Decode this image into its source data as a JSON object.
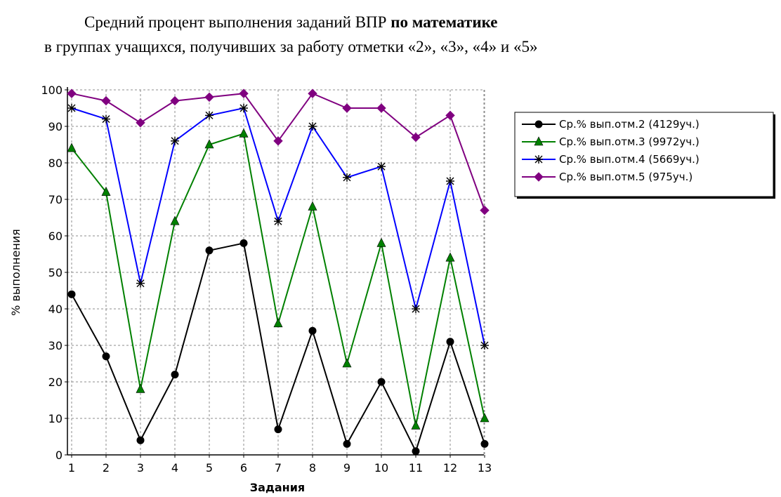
{
  "heading": {
    "line1_prefix": "Средний процент выполнения заданий ВПР ",
    "line1_bold": "по математике",
    "line2": "в группах учащихся, получивших за работу отметки «2», «3», «4» и «5»"
  },
  "chart_data": {
    "type": "line",
    "title": "Средний процент выполнения заданий ВПР по математике в группах учащихся, получивших за работу отметки «2», «3», «4» и «5»",
    "xlabel": "Задания",
    "ylabel": "% выполнения",
    "x": [
      1,
      2,
      3,
      4,
      5,
      6,
      7,
      8,
      9,
      10,
      11,
      12,
      13
    ],
    "ylim": [
      0,
      100
    ],
    "yticks": [
      0,
      10,
      20,
      30,
      40,
      50,
      60,
      70,
      80,
      90,
      100
    ],
    "grid": true,
    "legend_position": "right",
    "series": [
      {
        "name": "Ср.% вып.отм.2 (4129уч.)",
        "color": "#000000",
        "marker": "circle",
        "values": [
          44,
          27,
          4,
          22,
          56,
          58,
          7,
          34,
          3,
          20,
          1,
          31,
          3
        ]
      },
      {
        "name": "Ср.% вып.отм.3 (9972уч.)",
        "color": "#008000",
        "marker": "triangle",
        "values": [
          84,
          72,
          18,
          64,
          85,
          88,
          36,
          68,
          25,
          58,
          8,
          54,
          10
        ]
      },
      {
        "name": "Ср.% вып.отм.4 (5669уч.)",
        "color": "#0000ff",
        "marker": "star",
        "values": [
          95,
          92,
          47,
          86,
          93,
          95,
          64,
          90,
          76,
          79,
          40,
          75,
          30
        ]
      },
      {
        "name": "Ср.% вып.отм.5 (975уч.)",
        "color": "#800080",
        "marker": "diamond",
        "values": [
          99,
          97,
          91,
          97,
          98,
          99,
          86,
          99,
          95,
          95,
          87,
          93,
          67
        ]
      }
    ]
  }
}
